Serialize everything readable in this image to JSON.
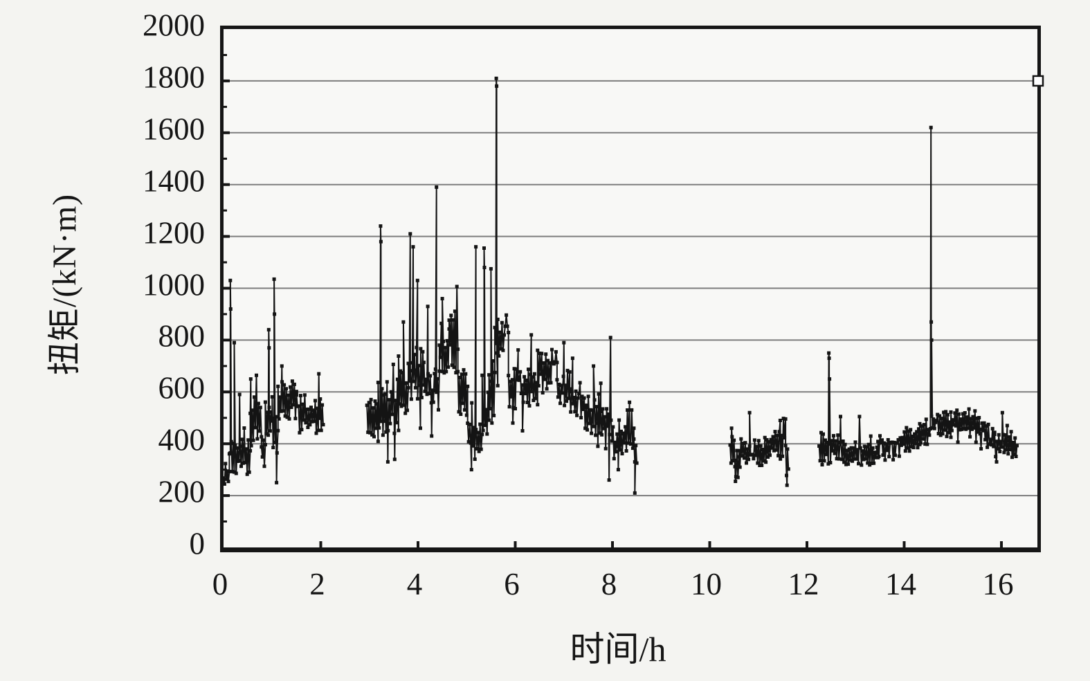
{
  "chart_data": {
    "type": "line",
    "title": "",
    "xlabel": "时间/h",
    "ylabel": "扭矩/(kN·m)",
    "xlim": [
      0,
      16.74
    ],
    "ylim": [
      0,
      2000
    ],
    "x_ticks": [
      0,
      2,
      4,
      6,
      8,
      10,
      12,
      14,
      16
    ],
    "y_ticks": [
      0,
      200,
      400,
      600,
      800,
      1000,
      1200,
      1400,
      1600,
      1800,
      2000
    ],
    "grid": "horizontal-only",
    "legend": "none",
    "marker": "small-black-square",
    "line_color": "#141414",
    "grid_color": "#7d7d7d",
    "axis_color": "#161616",
    "sample_step": 0.021,
    "right_edge_marker_y": 1800,
    "data_gaps": [
      [
        2.05,
        2.95
      ],
      [
        8.5,
        10.42
      ],
      [
        11.62,
        12.25
      ]
    ],
    "series": [
      {
        "name": "扭矩",
        "segments": [
          {
            "x0": 0.0,
            "x1": 0.12,
            "lo": 240,
            "hi": 310
          },
          {
            "x0": 0.12,
            "x1": 0.3,
            "lo": 250,
            "hi": 420
          },
          {
            "x0": 0.3,
            "x1": 0.55,
            "lo": 270,
            "hi": 430
          },
          {
            "x0": 0.55,
            "x1": 0.78,
            "lo": 380,
            "hi": 620
          },
          {
            "x0": 0.78,
            "x1": 0.86,
            "lo": 300,
            "hi": 430
          },
          {
            "x0": 0.86,
            "x1": 1.0,
            "lo": 420,
            "hi": 600
          },
          {
            "x0": 1.0,
            "x1": 1.12,
            "lo": 350,
            "hi": 600
          },
          {
            "x0": 1.12,
            "x1": 1.5,
            "lo": 480,
            "hi": 650
          },
          {
            "x0": 1.5,
            "x1": 1.95,
            "lo": 430,
            "hi": 600
          },
          {
            "x0": 1.95,
            "x1": 2.05,
            "lo": 420,
            "hi": 600
          },
          {
            "x0": 2.95,
            "x1": 3.18,
            "lo": 390,
            "hi": 600
          },
          {
            "x0": 3.18,
            "x1": 3.32,
            "lo": 420,
            "hi": 650
          },
          {
            "x0": 3.32,
            "x1": 3.6,
            "lo": 420,
            "hi": 660
          },
          {
            "x0": 3.6,
            "x1": 3.8,
            "lo": 500,
            "hi": 700
          },
          {
            "x0": 3.8,
            "x1": 3.97,
            "lo": 550,
            "hi": 760
          },
          {
            "x0": 3.97,
            "x1": 4.12,
            "lo": 560,
            "hi": 780
          },
          {
            "x0": 4.12,
            "x1": 4.36,
            "lo": 520,
            "hi": 740
          },
          {
            "x0": 4.36,
            "x1": 4.44,
            "lo": 520,
            "hi": 700
          },
          {
            "x0": 4.44,
            "x1": 4.64,
            "lo": 620,
            "hi": 880
          },
          {
            "x0": 4.64,
            "x1": 4.82,
            "lo": 650,
            "hi": 950
          },
          {
            "x0": 4.82,
            "x1": 5.02,
            "lo": 480,
            "hi": 700
          },
          {
            "x0": 5.02,
            "x1": 5.32,
            "lo": 320,
            "hi": 520
          },
          {
            "x0": 5.32,
            "x1": 5.46,
            "lo": 390,
            "hi": 620
          },
          {
            "x0": 5.46,
            "x1": 5.58,
            "lo": 460,
            "hi": 760
          },
          {
            "x0": 5.58,
            "x1": 5.64,
            "lo": 550,
            "hi": 900
          },
          {
            "x0": 5.64,
            "x1": 5.86,
            "lo": 650,
            "hi": 950
          },
          {
            "x0": 5.86,
            "x1": 6.06,
            "lo": 500,
            "hi": 720
          },
          {
            "x0": 6.06,
            "x1": 6.46,
            "lo": 530,
            "hi": 700
          },
          {
            "x0": 6.46,
            "x1": 6.86,
            "lo": 580,
            "hi": 780
          },
          {
            "x0": 6.86,
            "x1": 7.12,
            "lo": 520,
            "hi": 700
          },
          {
            "x0": 7.12,
            "x1": 7.46,
            "lo": 480,
            "hi": 650
          },
          {
            "x0": 7.46,
            "x1": 7.76,
            "lo": 420,
            "hi": 600
          },
          {
            "x0": 7.76,
            "x1": 7.94,
            "lo": 400,
            "hi": 560
          },
          {
            "x0": 7.97,
            "x1": 8.22,
            "lo": 330,
            "hi": 520
          },
          {
            "x0": 8.22,
            "x1": 8.44,
            "lo": 340,
            "hi": 500
          },
          {
            "x0": 8.44,
            "x1": 8.5,
            "lo": 300,
            "hi": 430
          },
          {
            "x0": 10.42,
            "x1": 10.52,
            "lo": 290,
            "hi": 460
          },
          {
            "x0": 10.52,
            "x1": 10.6,
            "lo": 260,
            "hi": 380
          },
          {
            "x0": 10.6,
            "x1": 10.82,
            "lo": 300,
            "hi": 430
          },
          {
            "x0": 10.84,
            "x1": 11.26,
            "lo": 310,
            "hi": 430
          },
          {
            "x0": 11.26,
            "x1": 11.56,
            "lo": 330,
            "hi": 470
          },
          {
            "x0": 11.56,
            "x1": 11.62,
            "lo": 250,
            "hi": 400
          },
          {
            "x0": 12.25,
            "x1": 12.44,
            "lo": 310,
            "hi": 450
          },
          {
            "x0": 12.46,
            "x1": 12.68,
            "lo": 320,
            "hi": 440
          },
          {
            "x0": 12.7,
            "x1": 13.06,
            "lo": 310,
            "hi": 420
          },
          {
            "x0": 13.1,
            "x1": 13.46,
            "lo": 310,
            "hi": 410
          },
          {
            "x0": 13.46,
            "x1": 13.92,
            "lo": 330,
            "hi": 440
          },
          {
            "x0": 13.92,
            "x1": 14.32,
            "lo": 350,
            "hi": 470
          },
          {
            "x0": 14.32,
            "x1": 14.54,
            "lo": 380,
            "hi": 500
          },
          {
            "x0": 14.56,
            "x1": 14.96,
            "lo": 410,
            "hi": 530
          },
          {
            "x0": 14.96,
            "x1": 15.56,
            "lo": 420,
            "hi": 540
          },
          {
            "x0": 15.56,
            "x1": 15.86,
            "lo": 370,
            "hi": 490
          },
          {
            "x0": 15.86,
            "x1": 16.12,
            "lo": 340,
            "hi": 450
          },
          {
            "x0": 16.12,
            "x1": 16.32,
            "lo": 340,
            "hi": 430
          }
        ],
        "spikes": [
          {
            "x": 0.14,
            "ys": [
              1030,
              920
            ]
          },
          {
            "x": 0.22,
            "ys": [
              790
            ]
          },
          {
            "x": 0.33,
            "ys": [
              590
            ]
          },
          {
            "x": 0.56,
            "ys": [
              650
            ]
          },
          {
            "x": 0.93,
            "ys": [
              840,
              770
            ]
          },
          {
            "x": 1.04,
            "ys": [
              1035,
              900
            ]
          },
          {
            "x": 1.09,
            "ys": [
              250
            ]
          },
          {
            "x": 1.2,
            "ys": [
              700
            ]
          },
          {
            "x": 1.96,
            "ys": [
              670
            ]
          },
          {
            "x": 3.23,
            "ys": [
              1240,
              1180
            ]
          },
          {
            "x": 3.38,
            "ys": [
              330
            ]
          },
          {
            "x": 3.52,
            "ys": [
              340
            ]
          },
          {
            "x": 3.7,
            "ys": [
              870
            ]
          },
          {
            "x": 3.84,
            "ys": [
              1210
            ]
          },
          {
            "x": 3.9,
            "ys": [
              1160
            ]
          },
          {
            "x": 3.99,
            "ys": [
              1030
            ]
          },
          {
            "x": 4.05,
            "ys": [
              460
            ]
          },
          {
            "x": 4.2,
            "ys": [
              930
            ]
          },
          {
            "x": 4.28,
            "ys": [
              430
            ]
          },
          {
            "x": 4.38,
            "ys": [
              1390
            ]
          },
          {
            "x": 4.5,
            "ys": [
              960
            ]
          },
          {
            "x": 5.1,
            "ys": [
              300
            ]
          },
          {
            "x": 5.19,
            "ys": [
              1160
            ]
          },
          {
            "x": 5.36,
            "ys": [
              1155,
              1080
            ]
          },
          {
            "x": 5.5,
            "ys": [
              1075
            ]
          },
          {
            "x": 5.61,
            "ys": [
              1810,
              1780
            ]
          },
          {
            "x": 5.95,
            "ys": [
              480
            ]
          },
          {
            "x": 6.15,
            "ys": [
              450
            ]
          },
          {
            "x": 6.33,
            "ys": [
              820
            ]
          },
          {
            "x": 7.0,
            "ys": [
              790
            ]
          },
          {
            "x": 7.18,
            "ys": [
              730
            ]
          },
          {
            "x": 7.61,
            "ys": [
              700
            ]
          },
          {
            "x": 7.7,
            "ys": [
              390
            ]
          },
          {
            "x": 7.93,
            "ys": [
              260
            ]
          },
          {
            "x": 7.96,
            "ys": [
              810
            ]
          },
          {
            "x": 8.12,
            "ys": [
              300
            ]
          },
          {
            "x": 8.35,
            "ys": [
              560
            ]
          },
          {
            "x": 8.46,
            "ys": [
              210
            ]
          },
          {
            "x": 10.45,
            "ys": [
              460
            ]
          },
          {
            "x": 10.53,
            "ys": [
              255
            ]
          },
          {
            "x": 10.82,
            "ys": [
              520
            ]
          },
          {
            "x": 11.45,
            "ys": [
              490
            ]
          },
          {
            "x": 11.59,
            "ys": [
              240
            ]
          },
          {
            "x": 12.45,
            "ys": [
              750,
              730,
              650
            ]
          },
          {
            "x": 12.69,
            "ys": [
              505
            ]
          },
          {
            "x": 13.08,
            "ys": [
              505
            ]
          },
          {
            "x": 14.55,
            "ys": [
              1620,
              870,
              800
            ]
          },
          {
            "x": 15.9,
            "ys": [
              330
            ]
          },
          {
            "x": 16.02,
            "ys": [
              520
            ]
          }
        ]
      }
    ]
  }
}
